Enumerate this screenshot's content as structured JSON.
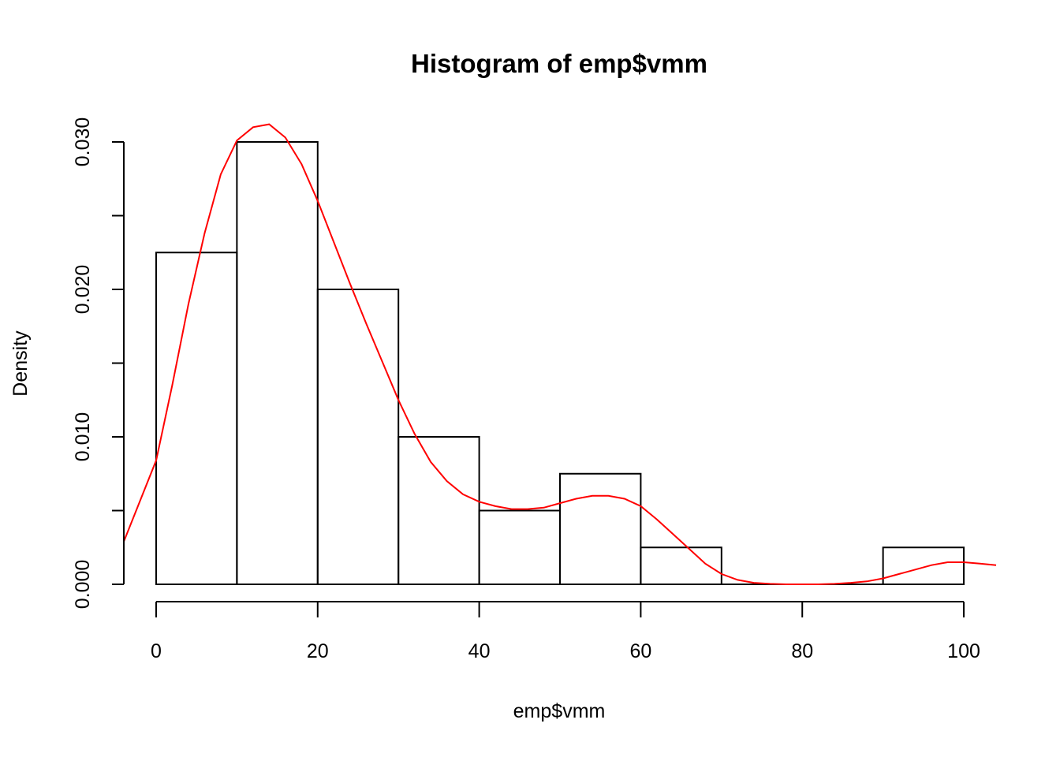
{
  "chart_data": {
    "type": "bar",
    "title": "Histogram of emp$vmm",
    "xlabel": "emp$vmm",
    "ylabel": "Density",
    "bins": [
      {
        "start": 0,
        "end": 10,
        "density": 0.0225
      },
      {
        "start": 10,
        "end": 20,
        "density": 0.03
      },
      {
        "start": 20,
        "end": 30,
        "density": 0.02
      },
      {
        "start": 30,
        "end": 40,
        "density": 0.01
      },
      {
        "start": 40,
        "end": 50,
        "density": 0.005
      },
      {
        "start": 50,
        "end": 60,
        "density": 0.0075
      },
      {
        "start": 60,
        "end": 70,
        "density": 0.0025
      },
      {
        "start": 70,
        "end": 80,
        "density": 0.0
      },
      {
        "start": 80,
        "end": 90,
        "density": 0.0
      },
      {
        "start": 90,
        "end": 100,
        "density": 0.0025
      }
    ],
    "x_ticks": [
      "0",
      "20",
      "40",
      "60",
      "80",
      "100"
    ],
    "x_tick_values": [
      0,
      20,
      40,
      60,
      80,
      100
    ],
    "y_ticks": [
      "0.000",
      "0.010",
      "0.020",
      "0.030"
    ],
    "y_tick_values": [
      0,
      0.005,
      0.01,
      0.015,
      0.02,
      0.025,
      0.03
    ],
    "y_labeled_values": [
      0,
      0.01,
      0.02,
      0.03
    ],
    "xlim": [
      -4,
      104
    ],
    "ylim": [
      0,
      0.03
    ],
    "grid": false,
    "density_curve": {
      "color": "#ff0000",
      "x": [
        -4,
        0,
        2,
        4,
        6,
        8,
        10,
        12,
        14,
        16,
        18,
        20,
        22,
        24,
        26,
        28,
        30,
        32,
        34,
        36,
        38,
        40,
        42,
        44,
        46,
        48,
        50,
        52,
        54,
        56,
        58,
        60,
        62,
        64,
        66,
        68,
        70,
        72,
        74,
        76,
        78,
        80,
        82,
        84,
        86,
        88,
        90,
        92,
        94,
        96,
        98,
        100,
        102,
        104
      ],
      "y": [
        0.0029,
        0.0084,
        0.0135,
        0.019,
        0.0238,
        0.0278,
        0.0301,
        0.031,
        0.0312,
        0.0303,
        0.0285,
        0.026,
        0.0232,
        0.0204,
        0.0177,
        0.0151,
        0.0125,
        0.0102,
        0.0083,
        0.007,
        0.0061,
        0.0056,
        0.0053,
        0.0051,
        0.0051,
        0.0052,
        0.0055,
        0.0058,
        0.006,
        0.006,
        0.0058,
        0.0053,
        0.0044,
        0.0034,
        0.0024,
        0.0014,
        0.0007,
        0.0003,
        0.0001,
        3e-05,
        0.0,
        0.0,
        0.0,
        3e-05,
        0.0001,
        0.0002,
        0.0004,
        0.0007,
        0.001,
        0.0013,
        0.0015,
        0.0015,
        0.0014,
        0.0013
      ]
    }
  }
}
